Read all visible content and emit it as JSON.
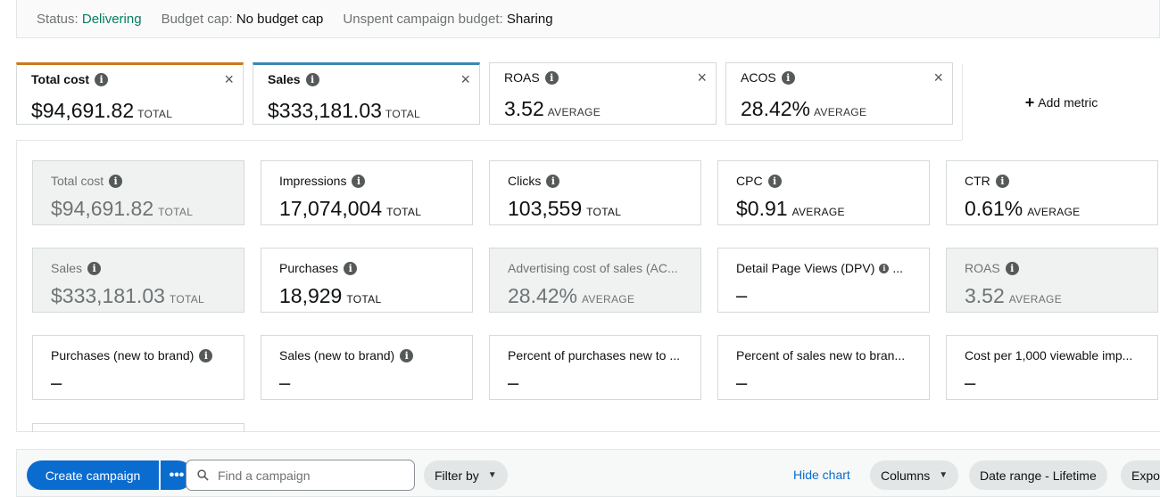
{
  "status_bar": {
    "status_label": "Status:",
    "status_value": "Delivering",
    "budget_label": "Budget cap:",
    "budget_value": "No budget cap",
    "unspent_label": "Unspent campaign budget:",
    "unspent_value": "Sharing"
  },
  "colors": {
    "accent_blue": "#0a6ccf",
    "status_green": "#067d62",
    "tab1_orange": "#c97a1c",
    "tab2_blue": "#3c84b4"
  },
  "metric_tabs": [
    {
      "name": "Total cost",
      "value": "$94,691.82",
      "unit": "TOTAL",
      "close": "×"
    },
    {
      "name": "Sales",
      "value": "$333,181.03",
      "unit": "TOTAL",
      "close": "×"
    },
    {
      "name": "ROAS",
      "value": "3.52",
      "unit": "AVERAGE",
      "close": "×"
    },
    {
      "name": "ACOS",
      "value": "28.42%",
      "unit": "AVERAGE",
      "close": "×"
    }
  ],
  "add_metric": {
    "icon": "+",
    "label": "Add metric"
  },
  "metric_cards": [
    {
      "name": "Total cost",
      "value": "$94,691.82",
      "unit": "TOTAL"
    },
    {
      "name": "Impressions",
      "value": "17,074,004",
      "unit": "TOTAL"
    },
    {
      "name": "Clicks",
      "value": "103,559",
      "unit": "TOTAL"
    },
    {
      "name": "CPC",
      "value": "$0.91",
      "unit": "AVERAGE"
    },
    {
      "name": "CTR",
      "value": "0.61%",
      "unit": "AVERAGE"
    },
    {
      "name": "Sales",
      "value": "$333,181.03",
      "unit": "TOTAL"
    },
    {
      "name": "Purchases",
      "value": "18,929",
      "unit": "TOTAL"
    },
    {
      "name": "Advertising cost of sales (AC...",
      "value": "28.42%",
      "unit": "AVERAGE"
    },
    {
      "name": "Detail Page Views (DPV)",
      "suffix": "...",
      "value": "–"
    },
    {
      "name": "ROAS",
      "value": "3.52",
      "unit": "AVERAGE"
    },
    {
      "name": "Purchases (new to brand)",
      "value": "–"
    },
    {
      "name": "Sales (new to brand)",
      "value": "–"
    },
    {
      "name": "Percent of purchases new to ...",
      "value": "–"
    },
    {
      "name": "Percent of sales new to bran...",
      "value": "–"
    },
    {
      "name": "Cost per 1,000 viewable imp...",
      "value": "–"
    }
  ],
  "toolbar": {
    "create_label": "Create campaign",
    "more_label": "•••",
    "search_placeholder": "Find a campaign",
    "filter_label": "Filter by",
    "hide_chart_label": "Hide chart",
    "columns_label": "Columns",
    "date_range_label": "Date range - Lifetime",
    "export_label": "Expor"
  }
}
